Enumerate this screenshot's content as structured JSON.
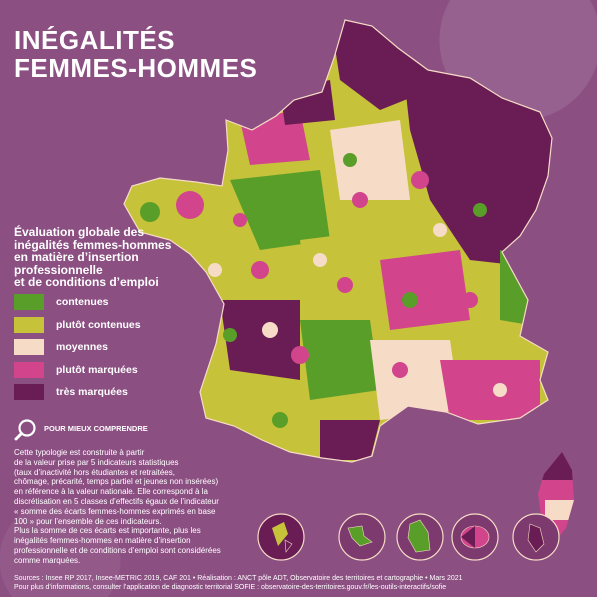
{
  "title": {
    "line1": "INÉGALITÉS",
    "line2": "FEMMES-HOMMES"
  },
  "legend": {
    "title_lines": [
      "Évaluation globale des",
      "inégalités femmes-hommes",
      "en matière d’insertion",
      "professionnelle",
      "et de conditions d’emploi"
    ],
    "items": [
      {
        "label": "contenues",
        "color": "#5a9e2a"
      },
      {
        "label": "plutôt contenues",
        "color": "#c6c23a"
      },
      {
        "label": "moyennes",
        "color": "#f6dcc6"
      },
      {
        "label": "plutôt marquées",
        "color": "#d2458c"
      },
      {
        "label": "très marquées",
        "color": "#6a1d54"
      }
    ]
  },
  "understand": {
    "label": "POUR MIEUX COMPRENDRE",
    "icon": "magnifier-icon"
  },
  "explanation": [
    "Cette typologie est construite à partir",
    "de la valeur prise par 5 indicateurs statistiques",
    "(taux d’inactivité hors étudiantes et retraitées,",
    "chômage, précarité, temps partiel et jeunes non insérées)",
    "en référence à la valeur nationale. Elle correspond à la",
    "discrétisation en 5 classes d’effectifs égaux de l’indicateur",
    "« somme des écarts femmes-hommes exprimés en base",
    "100 » pour l’ensemble de ces indicateurs.",
    "Plus la somme de ces écarts est importante, plus les",
    "inégalités femmes-hommes en matière d’insertion",
    "professionnelle et de conditions d’emploi sont considérées",
    "comme marquées."
  ],
  "footer": {
    "sources": "Sources : Insee RP 2017, Insee-METRIC 2019, CAF 201 • Réalisation : ANCT pôle ADT, Observatoire des territoires et cartographie • Mars 2021",
    "more": "Pour plus d’informations, consulter l’application de diagnostic territorial SOFIE : observatoire-des-territoires.gouv.fr/les-outils-interactifs/sofie"
  },
  "map": {
    "country": "France métropolitaine",
    "insets": [
      "Guadeloupe",
      "Martinique",
      "Guyane",
      "La Réunion",
      "Mayotte"
    ]
  }
}
